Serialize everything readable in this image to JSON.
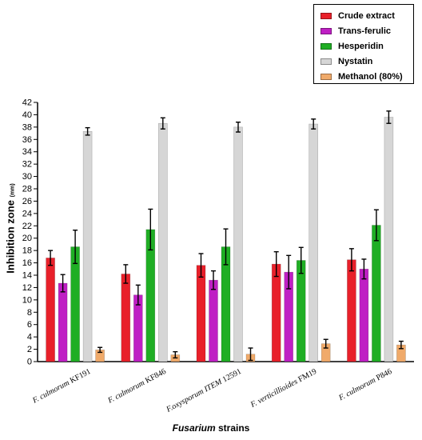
{
  "chart_data": {
    "type": "bar",
    "xlabel_italic": "Fusarium",
    "xlabel_rest": " strains",
    "ylabel_main": "Inhibition zone",
    "ylabel_unit": "(mm)",
    "ylim": [
      0,
      42
    ],
    "ytick_step": 2,
    "categories": [
      "F. culmorum KF191",
      "F. culmorum KF846",
      "F.oxysporum ITEM 12591",
      "F. verticillioides FM19",
      "F. culmorum P846"
    ],
    "series": [
      {
        "name": "Crude extract",
        "color": "#e8202a",
        "values": [
          16.8,
          14.2,
          15.6,
          15.8,
          16.5
        ],
        "errors": [
          1.2,
          1.5,
          1.9,
          2.0,
          1.8
        ]
      },
      {
        "name": "Trans-ferulic",
        "color": "#bf1fc4",
        "values": [
          12.7,
          10.8,
          13.2,
          14.5,
          15.0
        ],
        "errors": [
          1.4,
          1.6,
          1.5,
          2.7,
          1.6
        ]
      },
      {
        "name": "Hesperidin",
        "color": "#1fae24",
        "values": [
          18.6,
          21.4,
          18.6,
          16.4,
          22.1
        ],
        "errors": [
          2.7,
          3.3,
          2.9,
          2.1,
          2.5
        ]
      },
      {
        "name": "Nystatin",
        "color": "#d6d6d6",
        "values": [
          37.3,
          38.6,
          38.0,
          38.5,
          39.6
        ],
        "errors": [
          0.6,
          0.9,
          0.8,
          0.8,
          1.0
        ]
      },
      {
        "name": "Methanol (80%)",
        "color": "#f0aa6a",
        "values": [
          1.9,
          1.1,
          1.2,
          2.9,
          2.7
        ],
        "errors": [
          0.4,
          0.5,
          1.0,
          0.7,
          0.6
        ]
      }
    ],
    "grid": false,
    "legend_position": "top-right"
  }
}
